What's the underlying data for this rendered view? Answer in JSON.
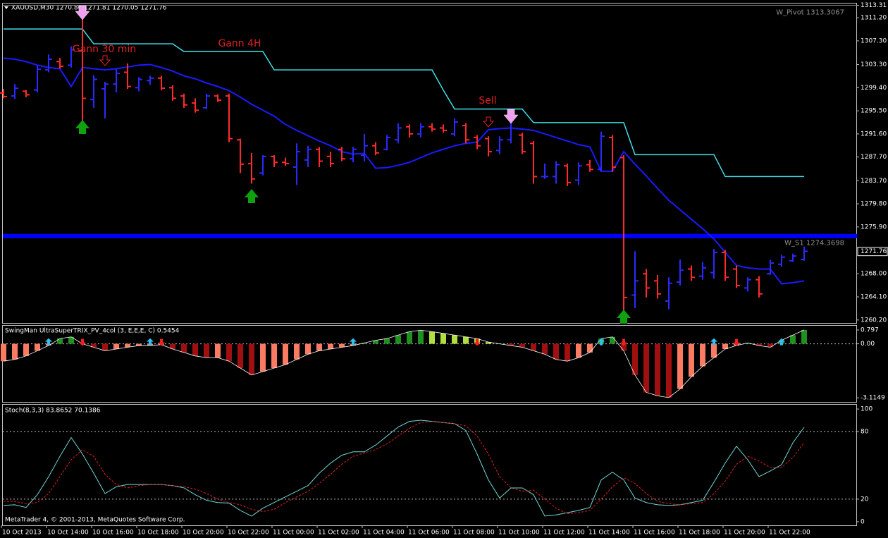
{
  "chart_data": [
    {
      "type": "ohlc",
      "title": "XAUUSD,M30 1270.80 1271.81 1270.05 1271.76",
      "categories": [
        "10 Oct 2013",
        null,
        null,
        null,
        "10 Oct 14:00",
        null,
        null,
        null,
        "10 Oct 16:00",
        null,
        null,
        null,
        "10 Oct 18:00",
        null,
        null,
        null,
        "10 Oct 20:00",
        null,
        null,
        null,
        "10 Oct 22:00",
        null,
        null,
        null,
        "11 Oct 00:00",
        null,
        null,
        null,
        "11 Oct 02:00",
        null,
        null,
        null,
        "11 Oct 04:00",
        null,
        null,
        null,
        "11 Oct 06:00",
        null,
        null,
        null,
        "11 Oct 08:00",
        null,
        null,
        null,
        "11 Oct 10:00",
        null,
        null,
        null,
        "11 Oct 12:00",
        null,
        null,
        null,
        "11 Oct 14:00",
        null,
        null,
        null,
        "11 Oct 16:00",
        null,
        null,
        null,
        "11 Oct 18:00",
        null,
        null,
        null,
        "11 Oct 20:00",
        null,
        null,
        null,
        "11 Oct 22:00",
        null,
        null,
        null
      ],
      "open": [
        1298.5,
        1298.0,
        1298.8,
        1299.0,
        1302.4,
        1303.8,
        1303.2,
        1305.6,
        1297.4,
        1299.2,
        1300.0,
        1302.0,
        1299.4,
        1300.6,
        1301.0,
        1299.4,
        1298.0,
        1296.8,
        1296.0,
        1298.0,
        1298.0,
        1290.6,
        1286.6,
        1285.0,
        1287.8,
        1286.8,
        1286.0,
        1287.2,
        1289.0,
        1287.8,
        1289.0,
        1287.4,
        1288.0,
        1289.6,
        1289.0,
        1290.6,
        1292.8,
        1291.6,
        1292.8,
        1292.6,
        1291.6,
        1293.0,
        1291.0,
        1290.8,
        1288.8,
        1290.6,
        1291.4,
        1290.0,
        1284.4,
        1284.4,
        1286.2,
        1283.8,
        1286.4,
        1285.6,
        1291.0,
        1287.6,
        1264.4,
        1268.0,
        1266.8,
        1263.4,
        1266.6,
        1268.8,
        1267.6,
        1268.2,
        1271.6,
        1268.8,
        1265.6,
        1267.0,
        1268.0,
        1269.6,
        1270.2,
        1270.4
      ],
      "high": [
        1299.2,
        1300.0,
        1299.0,
        1303.2,
        1305.0,
        1304.4,
        1306.4,
        1311.2,
        1301.5,
        1300.4,
        1302.5,
        1303.5,
        1301.2,
        1301.4,
        1301.4,
        1299.8,
        1298.4,
        1297.6,
        1298.4,
        1298.3,
        1298.4,
        1290.8,
        1288.4,
        1288.0,
        1288.0,
        1287.6,
        1290.0,
        1289.6,
        1289.4,
        1288.6,
        1289.4,
        1289.4,
        1291.6,
        1290.2,
        1291.4,
        1293.4,
        1293.2,
        1293.4,
        1293.4,
        1293.2,
        1294.2,
        1293.4,
        1291.4,
        1291.2,
        1291.2,
        1295.4,
        1291.8,
        1290.4,
        1286.6,
        1287.0,
        1286.6,
        1286.8,
        1287.2,
        1292.0,
        1291.4,
        1288.0,
        1271.8,
        1268.8,
        1267.8,
        1267.4,
        1270.4,
        1269.4,
        1270.0,
        1272.2,
        1272.0,
        1269.4,
        1267.4,
        1267.6,
        1270.4,
        1271.2,
        1271.4,
        1272.6
      ],
      "low": [
        1297.6,
        1297.5,
        1297.8,
        1298.6,
        1302.0,
        1302.6,
        1302.8,
        1293.4,
        1296.0,
        1294.2,
        1298.6,
        1299.2,
        1298.8,
        1299.9,
        1299.0,
        1297.2,
        1296.0,
        1295.2,
        1295.8,
        1297.0,
        1290.2,
        1285.0,
        1283.2,
        1284.6,
        1286.0,
        1286.2,
        1283.0,
        1286.0,
        1286.0,
        1286.0,
        1287.0,
        1286.8,
        1287.0,
        1288.0,
        1288.8,
        1290.0,
        1291.0,
        1291.0,
        1292.0,
        1291.8,
        1291.2,
        1290.0,
        1289.0,
        1287.8,
        1288.2,
        1290.0,
        1288.2,
        1283.2,
        1284.0,
        1283.2,
        1282.8,
        1283.0,
        1285.2,
        1285.2,
        1285.2,
        1260.5,
        1262.2,
        1264.0,
        1263.8,
        1262.0,
        1266.0,
        1266.8,
        1267.0,
        1267.2,
        1266.8,
        1265.6,
        1265.0,
        1264.0,
        1267.8,
        1269.2,
        1270.0,
        1270.2
      ],
      "close": [
        1297.9,
        1299.3,
        1298.2,
        1302.5,
        1304.2,
        1303.0,
        1305.8,
        1297.6,
        1300.8,
        1300.0,
        1301.8,
        1299.6,
        1300.8,
        1301.0,
        1299.3,
        1297.6,
        1296.5,
        1295.6,
        1298.0,
        1297.3,
        1290.8,
        1286.5,
        1284.0,
        1287.8,
        1286.8,
        1286.6,
        1288.6,
        1289.0,
        1287.0,
        1286.6,
        1287.4,
        1289.0,
        1289.6,
        1288.4,
        1291.0,
        1292.6,
        1291.6,
        1292.8,
        1292.4,
        1292.2,
        1293.6,
        1290.6,
        1289.6,
        1288.6,
        1290.6,
        1294.6,
        1288.6,
        1284.4,
        1284.4,
        1286.4,
        1283.4,
        1286.2,
        1285.6,
        1291.2,
        1286.0,
        1264.0,
        1266.8,
        1265.6,
        1264.6,
        1266.4,
        1268.6,
        1267.4,
        1269.0,
        1271.6,
        1267.4,
        1266.0,
        1267.0,
        1264.6,
        1269.8,
        1270.8,
        1271.0,
        1271.8
      ],
      "up_color": "#2a2aff",
      "down_color": "#ff2a2a",
      "series": [
        {
          "color": "#40e0e8",
          "values": [
            1309.3,
            1309.3,
            1309.3,
            1309.3,
            1309.3,
            1309.3,
            1309.3,
            1309.3,
            1306.8,
            1306.8,
            1306.8,
            1306.8,
            1306.8,
            1306.8,
            1306.8,
            1306.8,
            1305.5,
            1305.5,
            1305.5,
            1305.5,
            1305.5,
            1305.5,
            1305.5,
            1305.5,
            1302.4,
            1302.4,
            1302.4,
            1302.4,
            1302.4,
            1302.4,
            1302.4,
            1302.4,
            1302.4,
            1302.4,
            1302.4,
            1302.4,
            1302.4,
            1302.4,
            1302.4,
            1299.0,
            1295.8,
            1295.8,
            1295.8,
            1295.8,
            1295.8,
            1295.8,
            1295.8,
            1293.5,
            1293.5,
            1293.5,
            1293.5,
            1293.5,
            1293.5,
            1293.5,
            1293.5,
            1293.5,
            1288.1,
            1288.1,
            1288.1,
            1288.1,
            1288.1,
            1288.1,
            1288.1,
            1288.1,
            1284.4,
            1284.4,
            1284.4,
            1284.4,
            1284.4,
            1284.4,
            1284.4,
            1284.4
          ]
        },
        {
          "color": "#1a1aff",
          "values": [
            1304.4,
            1304.2,
            1303.8,
            1303.2,
            1302.8,
            1302.6,
            1299.6,
            1302.8,
            1302.6,
            1302.4,
            1302.6,
            1302.9,
            1303.2,
            1303.3,
            1302.8,
            1302.2,
            1301.4,
            1300.9,
            1300.2,
            1299.6,
            1298.9,
            1297.8,
            1296.6,
            1295.6,
            1294.6,
            1293.2,
            1292.2,
            1291.3,
            1290.4,
            1289.6,
            1288.6,
            1288.2,
            1288.3,
            1285.8,
            1285.9,
            1286.3,
            1286.8,
            1287.6,
            1288.4,
            1289.0,
            1289.6,
            1290.0,
            1290.2,
            1292.3,
            1292.5,
            1292.6,
            1292.4,
            1292.2,
            1291.6,
            1291.0,
            1290.4,
            1289.8,
            1289.4,
            1285.3,
            1285.3,
            1288.6,
            1286.5,
            1284.5,
            1282.4,
            1280.4,
            1278.8,
            1277.2,
            1275.6,
            1273.9,
            1271.6,
            1269.4,
            1269.0,
            1268.8,
            1268.8,
            1266.3,
            1266.5,
            1266.8
          ]
        }
      ],
      "levels": [
        {
          "value": 1313.3067,
          "label": "W_Pivot 1313.3067",
          "color": "#808080",
          "width": 1
        },
        {
          "value": 1274.3698,
          "label": "W_S1 1274.3698",
          "color": "#0000ff",
          "width": 6
        }
      ],
      "annotations": [
        "Gann 30 min",
        "Gann 4H",
        "Sell"
      ],
      "last_price": 1271.76,
      "ylim": [
        1259.7,
        1313.6
      ],
      "yticks": [
        {
          "value": 1313.31,
          "label": "1313.31"
        },
        {
          "value": 1311.2,
          "label": "1311.20"
        },
        {
          "value": 1307.3,
          "label": "1307.30"
        },
        {
          "value": 1303.3,
          "label": "1303.30"
        },
        {
          "value": 1299.4,
          "label": "1299.40"
        },
        {
          "value": 1295.5,
          "label": "1295.50"
        },
        {
          "value": 1291.6,
          "label": "1291.60"
        },
        {
          "value": 1287.7,
          "label": "1287.70"
        },
        {
          "value": 1283.7,
          "label": "1283.70"
        },
        {
          "value": 1279.8,
          "label": "1279.80"
        },
        {
          "value": 1275.9,
          "label": "1275.90"
        },
        {
          "value": 1268.0,
          "label": "1268.00"
        },
        {
          "value": 1264.1,
          "label": "1264.10"
        },
        {
          "value": 1260.2,
          "label": "1260.20"
        }
      ]
    },
    {
      "type": "bar",
      "title": "SwingMan UltraSuperTRIX_PV_4col (3, E,E,E, C) 0.5454",
      "values": [
        -1.0,
        -0.9,
        -0.7,
        -0.4,
        -0.1,
        0.3,
        0.4,
        0.0,
        -0.2,
        -0.4,
        -0.3,
        -0.2,
        -0.1,
        -0.1,
        -0.05,
        -0.3,
        -0.5,
        -0.7,
        -0.8,
        -0.8,
        -1.0,
        -1.4,
        -1.8,
        -1.6,
        -1.4,
        -1.2,
        -0.9,
        -0.6,
        -0.4,
        -0.3,
        -0.2,
        -0.1,
        0.05,
        0.2,
        0.3,
        0.5,
        0.7,
        0.78,
        0.7,
        0.6,
        0.5,
        0.4,
        0.3,
        0.1,
        0.0,
        -0.1,
        -0.2,
        -0.4,
        -0.6,
        -0.9,
        -1.0,
        -0.8,
        -0.5,
        0.3,
        0.4,
        -0.4,
        -1.8,
        -2.8,
        -3.0,
        -3.1,
        -2.6,
        -1.9,
        -1.3,
        -0.8,
        -0.3,
        -0.1,
        0.05,
        -0.1,
        -0.2,
        0.2,
        0.5,
        0.797
      ],
      "colors": [
        "#a01010",
        "#fa7a62",
        "#209020",
        "#b0e040"
      ],
      "line_color": "#ffffff",
      "levels": [
        0
      ],
      "ylim": [
        -3.35,
        1.04
      ],
      "yticks": [
        0.797,
        {
          "value": 0,
          "label": "0.00"
        },
        -3.1149
      ]
    },
    {
      "type": "line",
      "title": "Stoch(8,3,3) 83.8652 70.1386",
      "series": [
        {
          "color": "#70d8d8",
          "dashed": false,
          "values": [
            14.5,
            15,
            12.6,
            24,
            40,
            58,
            74.7,
            60,
            43,
            25,
            31,
            33,
            33,
            33,
            33,
            32,
            30,
            24,
            19,
            17,
            16.5,
            10,
            5,
            12,
            17,
            22,
            27,
            32,
            43,
            52,
            59,
            62,
            62,
            68,
            76,
            84,
            89,
            90,
            89,
            88,
            87,
            81,
            60,
            37,
            21,
            30,
            30,
            24,
            5,
            6,
            8,
            10,
            12.6,
            37,
            44,
            37,
            21,
            17,
            15,
            14.5,
            15,
            17,
            19,
            35,
            52,
            67,
            55,
            40,
            45,
            50.6,
            70,
            83.8652
          ]
        },
        {
          "color": "#e02020",
          "dashed": true,
          "values": [
            18,
            18,
            16,
            17,
            25,
            40,
            55,
            64,
            58,
            42,
            33,
            30,
            32,
            33,
            33,
            32,
            31,
            29,
            25,
            20,
            17,
            15,
            11,
            9,
            11,
            17,
            22,
            27,
            34,
            42,
            51,
            58,
            61,
            64,
            69,
            76,
            83,
            88,
            89,
            88,
            87,
            85,
            76,
            60,
            40,
            30,
            27,
            28,
            20,
            12,
            7,
            8,
            10,
            20,
            31,
            39,
            34,
            25,
            18,
            16,
            15,
            16,
            17,
            25,
            36,
            51,
            58,
            54,
            48,
            48,
            57,
            70.1386
          ]
        }
      ],
      "levels": [
        80,
        20
      ],
      "ylim": [
        -3.2,
        103.8
      ],
      "yticks": [
        100,
        80,
        20,
        0
      ]
    }
  ],
  "footer": "MetaTrader 4, © 2001-2013, MetaQuotes Software Corp."
}
